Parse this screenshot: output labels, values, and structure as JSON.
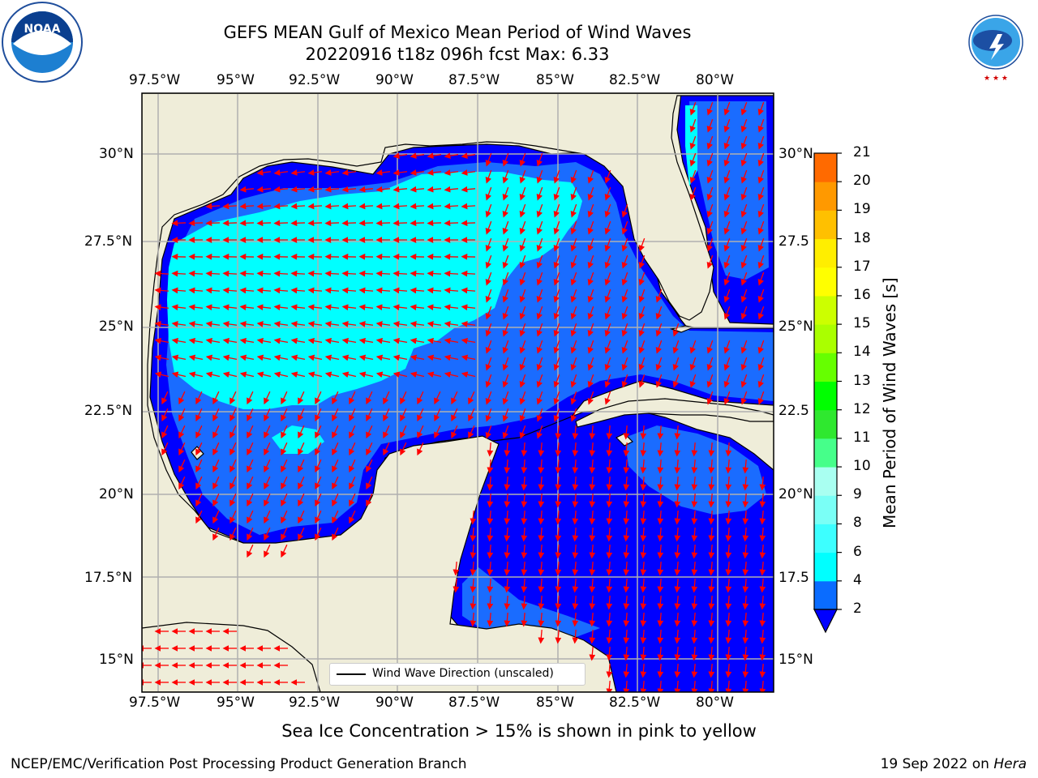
{
  "title": {
    "line1": "GEFS MEAN Gulf of Mexico Mean Period of Wind Waves",
    "line2": "20220916 t18z 096h fcst   Max: 6.33"
  },
  "logos": {
    "left": "NOAA",
    "right": "NATIONAL WEATHER SERVICE",
    "left_ring": "NATIONAL OCEANIC AND ATMOSPHERIC ADMINISTRATION · U.S. DEPARTMENT OF COMMERCE"
  },
  "axes": {
    "lon_labels": [
      "97.5°W",
      "95°W",
      "92.5°W",
      "90°W",
      "87.5°W",
      "85°W",
      "82.5°W",
      "80°W"
    ],
    "lat_labels_left": [
      "30°N",
      "27.5°N",
      "25°N",
      "22.5°N",
      "20°N",
      "17.5°N",
      "15°N"
    ],
    "lat_labels_right": [
      "30°N",
      "27.5",
      "25°N",
      "22.5",
      "20°N",
      "17.5",
      "15°N"
    ]
  },
  "map_data": {
    "region": "Gulf of Mexico",
    "lon_range": [
      -98,
      -78.2
    ],
    "lat_range": [
      14,
      31.6
    ],
    "gridlines": true,
    "field": "Mean Period of Wind Waves",
    "vectors": "Wind Wave Direction (unscaled)",
    "colors": {
      "land": "#efedd9",
      "water_2_4": "#0055ff",
      "water_low": "#0000ff",
      "water_4_6": "#00ffff",
      "arrow": "#ff0000",
      "grid": "#b0b0b0"
    }
  },
  "colorbar": {
    "label": "Mean Period of Wind Waves [s]",
    "ticks": [
      "2",
      "4",
      "6",
      "8",
      "9",
      "10",
      "11",
      "12",
      "13",
      "14",
      "15",
      "16",
      "17",
      "18",
      "19",
      "20",
      "21"
    ],
    "colors": [
      "#0a6cff",
      "#00ffff",
      "#3dffff",
      "#7afff6",
      "#a9fff1",
      "#46ff8a",
      "#2fe82f",
      "#00ff00",
      "#66ff00",
      "#aaff00",
      "#ccff00",
      "#ffff00",
      "#ffee00",
      "#ffc000",
      "#ff9900",
      "#ff6a00",
      "#ff3300",
      "#ff0000"
    ],
    "extend_color": "#0000ff"
  },
  "legend": {
    "label": "Wind Wave Direction (unscaled)"
  },
  "note": "Sea Ice Concentration > 15% is shown in pink to yellow",
  "footer": {
    "left": "NCEP/EMC/Verification Post Processing Product Generation Branch",
    "right_date": "19 Sep 2022 on",
    "right_host": "Hera"
  }
}
